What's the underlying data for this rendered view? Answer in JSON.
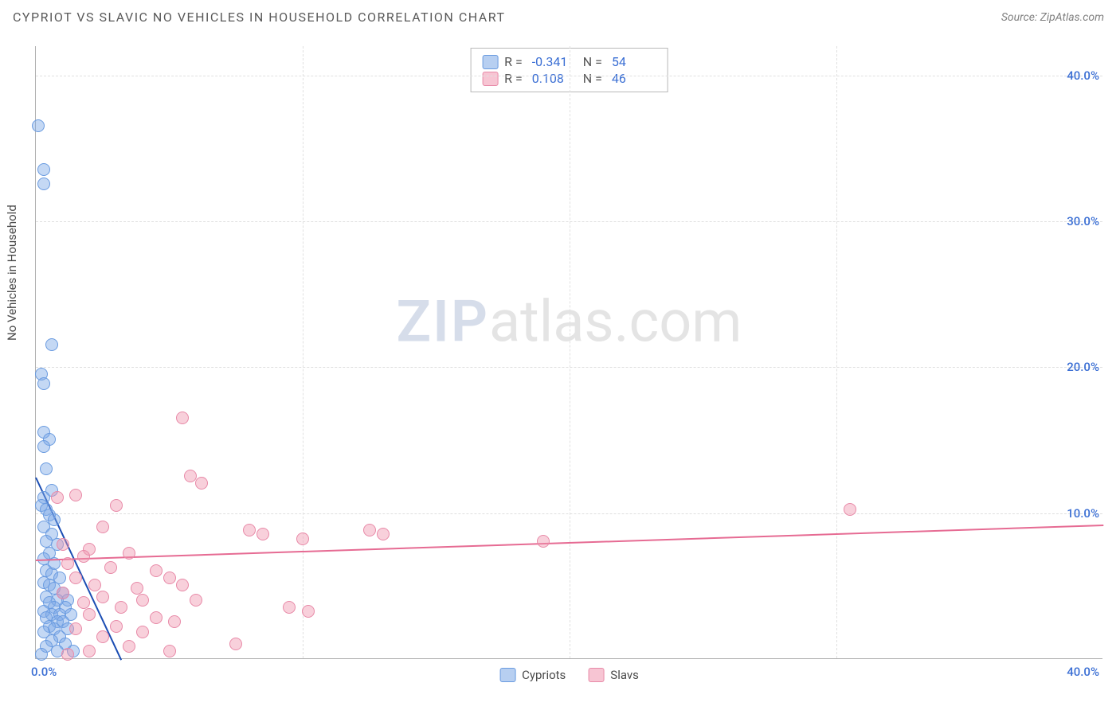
{
  "header": {
    "title": "CYPRIOT VS SLAVIC NO VEHICLES IN HOUSEHOLD CORRELATION CHART",
    "source": "Source: ZipAtlas.com"
  },
  "chart": {
    "type": "scatter",
    "ylabel": "No Vehicles in Household",
    "xlim": [
      0,
      40
    ],
    "ylim": [
      0,
      42
    ],
    "y_ticks": [
      10,
      20,
      30,
      40
    ],
    "y_tick_labels": [
      "10.0%",
      "20.0%",
      "30.0%",
      "40.0%"
    ],
    "x_ticks": [
      10,
      20,
      30
    ],
    "x_origin_label": "0.0%",
    "x_max_label": "40.0%",
    "tick_color": "#3b6fd4",
    "grid_color": "#e0e0e0",
    "background_color": "#ffffff",
    "marker_radius": 8,
    "series": [
      {
        "name": "Cypriots",
        "fill": "rgba(124,168,230,0.45)",
        "stroke": "#6a9be0",
        "trend_color": "#1b4db3",
        "trend": {
          "x1": 0,
          "y1": 12.5,
          "x2": 3.2,
          "y2": 0
        },
        "points": [
          [
            0.1,
            36.5
          ],
          [
            0.3,
            33.5
          ],
          [
            0.3,
            32.5
          ],
          [
            0.6,
            21.5
          ],
          [
            0.2,
            19.5
          ],
          [
            0.3,
            18.8
          ],
          [
            0.3,
            15.5
          ],
          [
            0.5,
            15.0
          ],
          [
            0.3,
            14.5
          ],
          [
            0.4,
            13.0
          ],
          [
            0.6,
            11.5
          ],
          [
            0.3,
            11.0
          ],
          [
            0.2,
            10.5
          ],
          [
            0.4,
            10.2
          ],
          [
            0.5,
            9.8
          ],
          [
            0.7,
            9.5
          ],
          [
            0.3,
            9.0
          ],
          [
            0.6,
            8.5
          ],
          [
            0.4,
            8.0
          ],
          [
            0.8,
            7.8
          ],
          [
            0.5,
            7.2
          ],
          [
            0.3,
            6.8
          ],
          [
            0.7,
            6.5
          ],
          [
            0.4,
            6.0
          ],
          [
            0.6,
            5.8
          ],
          [
            0.9,
            5.5
          ],
          [
            0.3,
            5.2
          ],
          [
            0.5,
            5.0
          ],
          [
            0.7,
            4.8
          ],
          [
            1.0,
            4.5
          ],
          [
            0.4,
            4.2
          ],
          [
            0.8,
            4.0
          ],
          [
            1.2,
            4.0
          ],
          [
            0.5,
            3.8
          ],
          [
            0.7,
            3.5
          ],
          [
            1.1,
            3.5
          ],
          [
            0.3,
            3.2
          ],
          [
            0.6,
            3.0
          ],
          [
            0.9,
            3.0
          ],
          [
            1.3,
            3.0
          ],
          [
            0.4,
            2.8
          ],
          [
            0.8,
            2.5
          ],
          [
            1.0,
            2.5
          ],
          [
            0.5,
            2.2
          ],
          [
            0.7,
            2.0
          ],
          [
            1.2,
            2.0
          ],
          [
            0.3,
            1.8
          ],
          [
            0.9,
            1.5
          ],
          [
            0.6,
            1.2
          ],
          [
            1.1,
            1.0
          ],
          [
            0.4,
            0.8
          ],
          [
            0.8,
            0.5
          ],
          [
            1.4,
            0.5
          ],
          [
            0.2,
            0.3
          ]
        ]
      },
      {
        "name": "Slavs",
        "fill": "rgba(240,150,175,0.45)",
        "stroke": "#e88aa8",
        "trend_color": "#e66b93",
        "trend": {
          "x1": 0,
          "y1": 6.8,
          "x2": 40,
          "y2": 9.2
        },
        "points": [
          [
            5.5,
            16.5
          ],
          [
            5.8,
            12.5
          ],
          [
            6.2,
            12.0
          ],
          [
            1.5,
            11.2
          ],
          [
            0.8,
            11.0
          ],
          [
            3.0,
            10.5
          ],
          [
            30.5,
            10.2
          ],
          [
            2.5,
            9.0
          ],
          [
            8.0,
            8.8
          ],
          [
            8.5,
            8.5
          ],
          [
            13.0,
            8.5
          ],
          [
            10.0,
            8.2
          ],
          [
            19.0,
            8.0
          ],
          [
            1.0,
            7.8
          ],
          [
            2.0,
            7.5
          ],
          [
            3.5,
            7.2
          ],
          [
            1.8,
            7.0
          ],
          [
            12.5,
            8.8
          ],
          [
            1.2,
            6.5
          ],
          [
            2.8,
            6.2
          ],
          [
            4.5,
            6.0
          ],
          [
            5.0,
            5.5
          ],
          [
            1.5,
            5.5
          ],
          [
            2.2,
            5.0
          ],
          [
            3.8,
            4.8
          ],
          [
            5.5,
            5.0
          ],
          [
            1.0,
            4.5
          ],
          [
            2.5,
            4.2
          ],
          [
            4.0,
            4.0
          ],
          [
            6.0,
            4.0
          ],
          [
            1.8,
            3.8
          ],
          [
            3.2,
            3.5
          ],
          [
            9.5,
            3.5
          ],
          [
            10.2,
            3.2
          ],
          [
            2.0,
            3.0
          ],
          [
            4.5,
            2.8
          ],
          [
            5.2,
            2.5
          ],
          [
            3.0,
            2.2
          ],
          [
            1.5,
            2.0
          ],
          [
            4.0,
            1.8
          ],
          [
            2.5,
            1.5
          ],
          [
            7.5,
            1.0
          ],
          [
            3.5,
            0.8
          ],
          [
            2.0,
            0.5
          ],
          [
            5.0,
            0.5
          ],
          [
            1.2,
            0.3
          ]
        ]
      }
    ]
  },
  "legend_top": {
    "rows": [
      {
        "swatch_fill": "rgba(124,168,230,0.55)",
        "swatch_stroke": "#6a9be0",
        "r_label": "R =",
        "r_value": "-0.341",
        "n_label": "N =",
        "n_value": "54",
        "value_color": "#3b6fd4"
      },
      {
        "swatch_fill": "rgba(240,150,175,0.55)",
        "swatch_stroke": "#e88aa8",
        "r_label": "R =",
        "r_value": "0.108",
        "n_label": "N =",
        "n_value": "46",
        "value_color": "#3b6fd4"
      }
    ]
  },
  "legend_bottom": {
    "items": [
      {
        "swatch_fill": "rgba(124,168,230,0.55)",
        "swatch_stroke": "#6a9be0",
        "label": "Cypriots"
      },
      {
        "swatch_fill": "rgba(240,150,175,0.55)",
        "swatch_stroke": "#e88aa8",
        "label": "Slavs"
      }
    ]
  },
  "watermark": {
    "part1": "ZIP",
    "part2": "atlas.com"
  }
}
